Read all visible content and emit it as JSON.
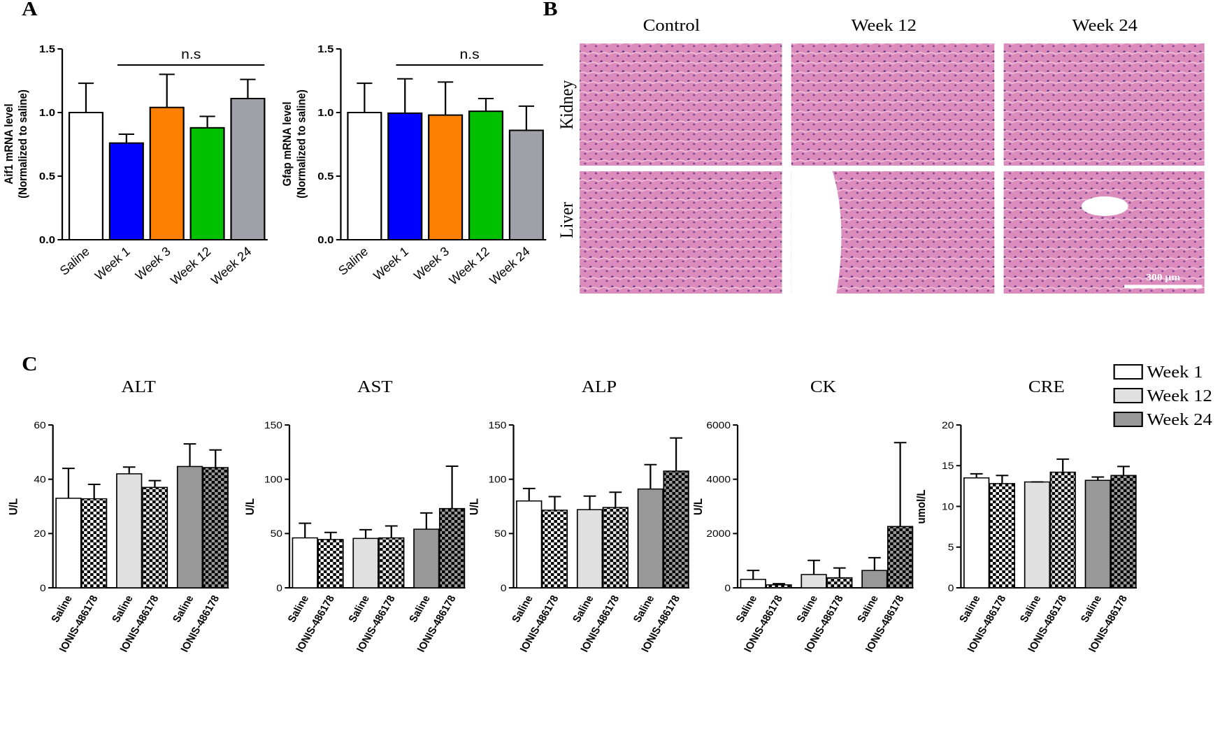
{
  "panel_labels": [
    "A",
    "B",
    "C"
  ],
  "histology": {
    "columns": [
      "Control",
      "Week 12",
      "Week 24"
    ],
    "rows": [
      "Kidney",
      "Liver"
    ],
    "scale_bar": "300 μm"
  },
  "legend": [
    {
      "name": "Week 1",
      "color": "#ffffff"
    },
    {
      "name": "Week 12",
      "color": "#e0e0e0"
    },
    {
      "name": "Week 24",
      "color": "#989898"
    }
  ],
  "chart_data": [
    {
      "type": "bar",
      "ylabel": [
        "Aif1 mRNA level",
        "(Normalized to saline)"
      ],
      "categories": [
        "Saline",
        "Week 1",
        "Week 3",
        "Week 12",
        "Week 24"
      ],
      "values": [
        1.0,
        0.76,
        1.04,
        0.88,
        1.11
      ],
      "errors": [
        0.23,
        0.07,
        0.26,
        0.09,
        0.15
      ],
      "colors": [
        "#ffffff",
        "#0000ff",
        "#ff8000",
        "#00c000",
        "#a0a0a8"
      ],
      "ylim": [
        0,
        1.5
      ],
      "yticks": [
        {
          "value": 0,
          "label": "0.0"
        },
        {
          "value": 0.5,
          "label": "0.5"
        },
        {
          "value": 1,
          "label": "1.0"
        },
        {
          "value": 1.5,
          "label": "1.5"
        }
      ],
      "annotation": "n.s"
    },
    {
      "type": "bar",
      "ylabel": [
        "Gfap mRNA level",
        "(Normalized to saline)"
      ],
      "categories": [
        "Saline",
        "Week 1",
        "Week 3",
        "Week 12",
        "Week 24"
      ],
      "values": [
        1.0,
        0.995,
        0.98,
        1.01,
        0.86
      ],
      "errors": [
        0.23,
        0.27,
        0.26,
        0.1,
        0.19
      ],
      "colors": [
        "#ffffff",
        "#0000ff",
        "#ff8000",
        "#00c000",
        "#a0a0a8"
      ],
      "ylim": [
        0,
        1.5
      ],
      "yticks": [
        {
          "value": 0,
          "label": "0.0"
        },
        {
          "value": 0.5,
          "label": "0.5"
        },
        {
          "value": 1,
          "label": "1.0"
        },
        {
          "value": 1.5,
          "label": "1.5"
        }
      ],
      "annotation": "n.s"
    },
    {
      "type": "grouped_bar",
      "title": "ALT",
      "ylabel": "U/L",
      "categories": [
        "Saline",
        "IONIS-486178"
      ],
      "series": [
        {
          "values": [
            33,
            32.8
          ],
          "errors": [
            11,
            5.3
          ]
        },
        {
          "values": [
            42,
            37
          ],
          "errors": [
            2.5,
            2.5
          ]
        },
        {
          "values": [
            44.7,
            44.3
          ],
          "errors": [
            8.3,
            6.5
          ]
        }
      ],
      "ylim": [
        0,
        60
      ],
      "yticks": [
        0,
        20,
        40,
        60
      ]
    },
    {
      "type": "grouped_bar",
      "title": "AST",
      "ylabel": "U/L",
      "categories": [
        "Saline",
        "IONIS-486178"
      ],
      "series": [
        {
          "values": [
            46,
            44.5
          ],
          "errors": [
            13.5,
            6.5
          ]
        },
        {
          "values": [
            45.5,
            46
          ],
          "errors": [
            8,
            11
          ]
        },
        {
          "values": [
            54,
            73
          ],
          "errors": [
            15,
            39
          ]
        }
      ],
      "ylim": [
        0,
        150
      ],
      "yticks": [
        0,
        50,
        100,
        150
      ]
    },
    {
      "type": "grouped_bar",
      "title": "ALP",
      "ylabel": "U/L",
      "categories": [
        "Saline",
        "IONIS-486178"
      ],
      "series": [
        {
          "values": [
            80,
            71.5
          ],
          "errors": [
            11.5,
            12.5
          ]
        },
        {
          "values": [
            72,
            74
          ],
          "errors": [
            12.5,
            14
          ]
        },
        {
          "values": [
            91,
            107.5
          ],
          "errors": [
            22.5,
            30.5
          ]
        }
      ],
      "ylim": [
        0,
        150
      ],
      "yticks": [
        0,
        50,
        100,
        150
      ]
    },
    {
      "type": "grouped_bar",
      "title": "CK",
      "ylabel": "U/L",
      "categories": [
        "Saline",
        "IONIS-486178"
      ],
      "series": [
        {
          "values": [
            310,
            110
          ],
          "errors": [
            330,
            40
          ]
        },
        {
          "values": [
            490,
            370
          ],
          "errors": [
            520,
            360
          ]
        },
        {
          "values": [
            640,
            2260
          ],
          "errors": [
            470,
            3090
          ]
        }
      ],
      "ylim": [
        0,
        6000
      ],
      "yticks": [
        0,
        2000,
        4000,
        6000
      ]
    },
    {
      "type": "grouped_bar",
      "title": "CRE",
      "ylabel": "umol/L",
      "categories": [
        "Saline",
        "IONIS-486178"
      ],
      "series": [
        {
          "values": [
            13.5,
            12.8
          ],
          "errors": [
            0.5,
            1.0
          ]
        },
        {
          "values": [
            13.0,
            14.2
          ],
          "errors": [
            0,
            1.6
          ]
        },
        {
          "values": [
            13.2,
            13.8
          ],
          "errors": [
            0.4,
            1.1
          ]
        }
      ],
      "ylim": [
        0,
        20
      ],
      "yticks": [
        0,
        5,
        10,
        15,
        20
      ]
    }
  ]
}
